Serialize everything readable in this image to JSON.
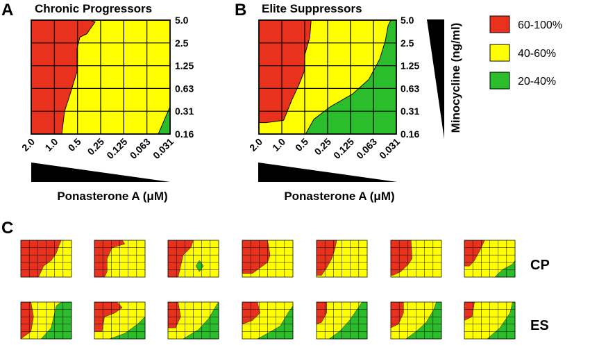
{
  "panel_labels": {
    "a": "A",
    "b": "B",
    "c": "C"
  },
  "panel_a": {
    "title": "Chronic Progressors"
  },
  "panel_b": {
    "title": "Elite Suppressors"
  },
  "x_axis": {
    "label": "Ponasterone A (μM)",
    "ticks": [
      "2.0",
      "1.0",
      "0.5",
      "0.25",
      "0.125",
      "0.063",
      "0.031"
    ]
  },
  "y_axis": {
    "label": "Minocycline (ng/ml)",
    "ticks": [
      "5.0",
      "2.5",
      "1.25",
      "0.63",
      "0.31",
      "0.16"
    ]
  },
  "legend": [
    {
      "label": "60-100%",
      "color": "#e8321e"
    },
    {
      "label": "40-60%",
      "color": "#ffff00"
    },
    {
      "label": "20-40%",
      "color": "#2bbd2b"
    }
  ],
  "row_labels": {
    "cp": "CP",
    "es": "ES"
  },
  "chart_data": [
    {
      "type": "heatmap",
      "title": "Chronic Progressors",
      "xlabel": "Ponasterone A (μM)",
      "ylabel": "Minocycline (ng/ml)",
      "x": [
        "2.0",
        "1.0",
        "0.5",
        "0.25",
        "0.125",
        "0.063",
        "0.031"
      ],
      "y": [
        "5.0",
        "2.5",
        "1.25",
        "0.63",
        "0.31",
        "0.16"
      ],
      "regions": {
        "60-100%": [
          [
            0.0,
            1.0
          ],
          [
            0.42,
            1.0
          ],
          [
            0.46,
            0.985
          ],
          [
            0.4,
            0.88
          ],
          [
            0.35,
            0.85
          ],
          [
            0.33,
            0.75
          ],
          [
            0.33,
            0.55
          ],
          [
            0.28,
            0.35
          ],
          [
            0.24,
            0.2
          ],
          [
            0.22,
            0.0
          ],
          [
            0.0,
            0.0
          ]
        ],
        "20-40%": [
          [
            0.915,
            0.0
          ],
          [
            1.0,
            0.0
          ],
          [
            1.0,
            0.24
          ]
        ]
      }
    },
    {
      "type": "heatmap",
      "title": "Elite Suppressors",
      "xlabel": "Ponasterone A (μM)",
      "ylabel": "Minocycline (ng/ml)",
      "x": [
        "2.0",
        "1.0",
        "0.5",
        "0.25",
        "0.125",
        "0.063",
        "0.031"
      ],
      "y": [
        "5.0",
        "2.5",
        "1.25",
        "0.63",
        "0.31",
        "0.16"
      ],
      "regions": {
        "60-100%": [
          [
            0.0,
            1.0
          ],
          [
            0.38,
            1.0
          ],
          [
            0.37,
            0.85
          ],
          [
            0.335,
            0.7
          ],
          [
            0.33,
            0.55
          ],
          [
            0.29,
            0.43
          ],
          [
            0.24,
            0.3
          ],
          [
            0.18,
            0.12
          ],
          [
            0.05,
            0.1
          ],
          [
            0.0,
            0.1
          ]
        ],
        "20-40%": [
          [
            0.34,
            0.0
          ],
          [
            0.4,
            0.13
          ],
          [
            0.52,
            0.24
          ],
          [
            0.68,
            0.35
          ],
          [
            0.8,
            0.48
          ],
          [
            0.88,
            0.66
          ],
          [
            0.92,
            0.82
          ],
          [
            0.94,
            0.95
          ],
          [
            0.96,
            1.0
          ],
          [
            1.0,
            1.0
          ],
          [
            1.0,
            0.0
          ]
        ]
      }
    }
  ],
  "small_multiples": {
    "cp": [
      {
        "red": [
          [
            0,
            1
          ],
          [
            0.8,
            1
          ],
          [
            0.75,
            0.85
          ],
          [
            0.7,
            0.65
          ],
          [
            0.6,
            0.45
          ],
          [
            0.45,
            0.3
          ],
          [
            0.35,
            0
          ],
          [
            0,
            0
          ]
        ],
        "green": []
      },
      {
        "red": [
          [
            0,
            1
          ],
          [
            0.55,
            1
          ],
          [
            0.6,
            0.9
          ],
          [
            0.35,
            0.8
          ],
          [
            0.25,
            0.5
          ],
          [
            0.25,
            0.15
          ],
          [
            0.2,
            0
          ],
          [
            0,
            0
          ]
        ],
        "green": []
      },
      {
        "red": [
          [
            0,
            1
          ],
          [
            0.5,
            1
          ],
          [
            0.45,
            0.8
          ],
          [
            0.3,
            0.6
          ],
          [
            0.25,
            0.3
          ],
          [
            0.2,
            0
          ],
          [
            0,
            0
          ]
        ],
        "green": [
          [
            0.55,
            0.3
          ],
          [
            0.62,
            0.15
          ],
          [
            0.7,
            0.3
          ],
          [
            0.62,
            0.45
          ]
        ]
      },
      {
        "red": [
          [
            0,
            1
          ],
          [
            0.5,
            1
          ],
          [
            0.55,
            0.6
          ],
          [
            0.5,
            0.4
          ],
          [
            0.35,
            0.25
          ],
          [
            0.2,
            0.1
          ],
          [
            0,
            0.1
          ]
        ],
        "green": []
      },
      {
        "red": [
          [
            0,
            1
          ],
          [
            0.4,
            1
          ],
          [
            0.35,
            0.7
          ],
          [
            0.3,
            0.5
          ],
          [
            0.2,
            0.25
          ],
          [
            0.1,
            0.05
          ],
          [
            0,
            0.05
          ]
        ],
        "green": []
      },
      {
        "red": [
          [
            0,
            1
          ],
          [
            0.4,
            1
          ],
          [
            0.42,
            0.5
          ],
          [
            0.35,
            0.35
          ],
          [
            0.2,
            0.15
          ],
          [
            0.05,
            0.05
          ],
          [
            0,
            0.05
          ]
        ],
        "green": []
      },
      {
        "red": [
          [
            0,
            1
          ],
          [
            0.4,
            1
          ],
          [
            0.3,
            0.7
          ],
          [
            0.2,
            0.45
          ],
          [
            0.1,
            0.3
          ],
          [
            0,
            0.3
          ]
        ],
        "green": [
          [
            0.6,
            0
          ],
          [
            0.75,
            0.2
          ],
          [
            0.95,
            0.35
          ],
          [
            1,
            0.45
          ],
          [
            1,
            0
          ]
        ]
      }
    ],
    "es": [
      {
        "red": [
          [
            0,
            1
          ],
          [
            0.2,
            1
          ],
          [
            0.25,
            0.6
          ],
          [
            0.2,
            0.2
          ],
          [
            0,
            0
          ]
        ],
        "green": [
          [
            0.4,
            0
          ],
          [
            0.6,
            0.3
          ],
          [
            0.7,
            0.9
          ],
          [
            0.8,
            1
          ],
          [
            1,
            1
          ],
          [
            1,
            0
          ]
        ]
      },
      {
        "red": [
          [
            0,
            1
          ],
          [
            0.45,
            1
          ],
          [
            0.55,
            0.85
          ],
          [
            0.4,
            0.7
          ],
          [
            0.2,
            0.6
          ],
          [
            0.15,
            0.2
          ],
          [
            0,
            0.2
          ]
        ],
        "green": [
          [
            0.3,
            0
          ],
          [
            0.6,
            0.15
          ],
          [
            0.85,
            0.4
          ],
          [
            1,
            0.6
          ],
          [
            1,
            0
          ]
        ]
      },
      {
        "red": [
          [
            0,
            1
          ],
          [
            0.2,
            1
          ],
          [
            0.25,
            0.6
          ],
          [
            0.15,
            0.3
          ],
          [
            0,
            0.3
          ]
        ],
        "green": [
          [
            0.3,
            0
          ],
          [
            0.6,
            0.25
          ],
          [
            0.8,
            0.55
          ],
          [
            0.95,
            0.9
          ],
          [
            1,
            1
          ],
          [
            1,
            0
          ]
        ]
      },
      {
        "red": [
          [
            0,
            1
          ],
          [
            0.3,
            1
          ],
          [
            0.35,
            0.7
          ],
          [
            0.2,
            0.5
          ],
          [
            0,
            0.4
          ]
        ],
        "green": [
          [
            0.3,
            0
          ],
          [
            0.5,
            0.15
          ],
          [
            0.75,
            0.35
          ],
          [
            0.9,
            0.7
          ],
          [
            1,
            0.9
          ],
          [
            1,
            0
          ]
        ]
      },
      {
        "red": [
          [
            0,
            1
          ],
          [
            0.2,
            1
          ],
          [
            0.2,
            0.7
          ],
          [
            0.1,
            0.45
          ],
          [
            0,
            0.4
          ]
        ],
        "green": [
          [
            0.25,
            0
          ],
          [
            0.45,
            0.2
          ],
          [
            0.65,
            0.5
          ],
          [
            0.8,
            0.8
          ],
          [
            0.9,
            1
          ],
          [
            1,
            1
          ],
          [
            1,
            0
          ]
        ]
      },
      {
        "red": [
          [
            0,
            1
          ],
          [
            0.25,
            1
          ],
          [
            0.25,
            0.7
          ],
          [
            0.15,
            0.4
          ],
          [
            0,
            0.3
          ]
        ],
        "green": [
          [
            0.3,
            0
          ],
          [
            0.5,
            0.2
          ],
          [
            0.7,
            0.45
          ],
          [
            0.85,
            0.8
          ],
          [
            0.9,
            1
          ],
          [
            1,
            1
          ],
          [
            1,
            0
          ]
        ]
      },
      {
        "red": [
          [
            0,
            1
          ],
          [
            0.2,
            1
          ],
          [
            0.15,
            0.6
          ],
          [
            0,
            0.5
          ]
        ],
        "green": [
          [
            0.45,
            0
          ],
          [
            0.7,
            0.3
          ],
          [
            0.9,
            0.7
          ],
          [
            0.95,
            1
          ],
          [
            1,
            1
          ],
          [
            1,
            0
          ]
        ]
      }
    ]
  }
}
